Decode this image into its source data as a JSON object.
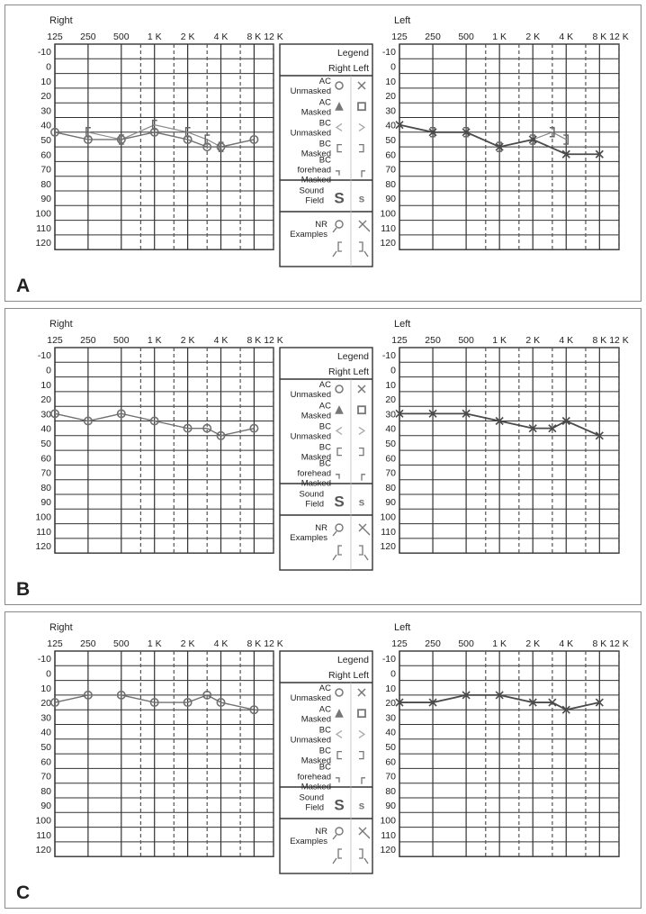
{
  "panels": [
    {
      "letter": "A"
    },
    {
      "letter": "B"
    },
    {
      "letter": "C"
    }
  ],
  "text": {
    "right_title": "Right",
    "left_title": "Left",
    "x_ticks": [
      "125",
      "250",
      "500",
      "1 K",
      "2 K",
      "4 K",
      "8 K",
      "12 K"
    ],
    "y_ticks": [
      "-10",
      "0",
      "10",
      "20",
      "30",
      "40",
      "50",
      "60",
      "70",
      "80",
      "90",
      "100",
      "110",
      "120"
    ]
  },
  "legend": {
    "title": "Legend",
    "right_label": "Right",
    "left_label": "Left",
    "rows": [
      {
        "label": "AC\nUnmasked",
        "right_symbol": "circle-icon",
        "left_symbol": "x-icon"
      },
      {
        "label": "AC\nMasked",
        "right_symbol": "triangle-icon",
        "left_symbol": "square-icon"
      },
      {
        "label": "BC\nUnmasked",
        "right_symbol": "less-than-icon",
        "left_symbol": "greater-than-icon"
      },
      {
        "label": "BC\nMasked",
        "right_symbol": "left-bracket-icon",
        "left_symbol": "right-bracket-icon"
      },
      {
        "label": "BC\nforehead\nMasked",
        "right_symbol": "bracket-down-icon",
        "left_symbol": "bracket-up-icon"
      }
    ],
    "sound_field_label": "Sound\nField",
    "sound_field_symbol": "S",
    "nr_label": "NR\nExamples"
  },
  "colors": {
    "grid": "#333333",
    "dashed_grid": "#555555",
    "right_series": "#707070",
    "left_series": "#4a4a4a",
    "legend_symbol": "#777777",
    "panel_border": "#8a8a8a"
  },
  "chart_data": [
    {
      "panel": "A",
      "type": "line",
      "x_ticks": [
        "125",
        "250",
        "500",
        "1 K",
        "2 K",
        "4 K",
        "8 K",
        "12 K"
      ],
      "x_unit": "Hz",
      "ylim": [
        -10,
        120
      ],
      "y_inverted": true,
      "grid": true,
      "right": {
        "ac_unmasked": {
          "x": [
            125,
            250,
            500,
            1000,
            2000,
            3000,
            4000,
            8000
          ],
          "y": [
            45,
            50,
            50,
            45,
            50,
            55,
            55,
            50
          ]
        },
        "bc_masked": {
          "x": [
            250,
            500,
            1000,
            2000,
            3000,
            4000
          ],
          "y": [
            45,
            50,
            40,
            45,
            50,
            55
          ]
        }
      },
      "left": {
        "ac_unmasked": {
          "x": [
            125,
            250,
            500,
            1000,
            2000,
            4000,
            8000
          ],
          "y": [
            40,
            45,
            45,
            55,
            50,
            60,
            60
          ]
        },
        "bc_masked": {
          "x": [
            250,
            500,
            1000,
            2000,
            3000,
            4000
          ],
          "y": [
            45,
            45,
            55,
            50,
            45,
            50
          ]
        }
      }
    },
    {
      "panel": "B",
      "type": "line",
      "x_ticks": [
        "125",
        "250",
        "500",
        "1 K",
        "2 K",
        "4 K",
        "8 K",
        "12 K"
      ],
      "x_unit": "Hz",
      "ylim": [
        -10,
        120
      ],
      "y_inverted": true,
      "grid": true,
      "right": {
        "ac_unmasked": {
          "x": [
            125,
            250,
            500,
            1000,
            2000,
            3000,
            4000,
            8000
          ],
          "y": [
            30,
            35,
            30,
            35,
            40,
            40,
            45,
            40
          ]
        }
      },
      "left": {
        "ac_unmasked": {
          "x": [
            125,
            250,
            500,
            1000,
            2000,
            3000,
            4000,
            8000
          ],
          "y": [
            30,
            30,
            30,
            35,
            40,
            40,
            35,
            45
          ]
        }
      }
    },
    {
      "panel": "C",
      "type": "line",
      "x_ticks": [
        "125",
        "250",
        "500",
        "1 K",
        "2 K",
        "4 K",
        "8 K",
        "12 K"
      ],
      "x_unit": "Hz",
      "ylim": [
        -10,
        120
      ],
      "y_inverted": true,
      "grid": true,
      "right": {
        "ac_unmasked": {
          "x": [
            125,
            250,
            500,
            1000,
            2000,
            3000,
            4000,
            8000
          ],
          "y": [
            20,
            15,
            15,
            20,
            20,
            15,
            20,
            25
          ]
        }
      },
      "left": {
        "ac_unmasked": {
          "x": [
            125,
            250,
            500,
            1000,
            2000,
            3000,
            4000,
            8000
          ],
          "y": [
            20,
            20,
            15,
            15,
            20,
            20,
            25,
            20
          ]
        }
      }
    }
  ]
}
